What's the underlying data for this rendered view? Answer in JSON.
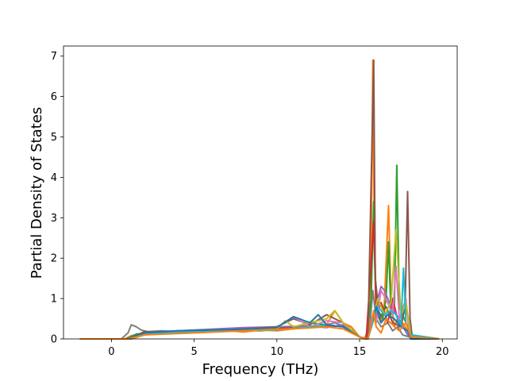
{
  "chart_data": {
    "type": "line",
    "title": "",
    "xlabel": "Frequency (THz)",
    "ylabel": "Partial Density of States",
    "xlim": [
      -2.9,
      20.9
    ],
    "ylim": [
      0,
      7.25
    ],
    "xticks": [
      0,
      5,
      10,
      15,
      20
    ],
    "yticks": [
      0,
      1,
      2,
      3,
      4,
      5,
      6,
      7
    ],
    "x_tick_labels": [
      "0",
      "5",
      "10",
      "15",
      "20"
    ],
    "y_tick_labels": [
      "0",
      "1",
      "2",
      "3",
      "4",
      "5",
      "6",
      "7"
    ],
    "grid": false,
    "legend": "none",
    "colors": [
      "#1f77b4",
      "#ff7f0e",
      "#2ca02c",
      "#d62728",
      "#9467bd",
      "#8c564b",
      "#e377c2",
      "#7f7f7f",
      "#bcbd22",
      "#17becf"
    ],
    "series": [
      {
        "color": "#7f7f7f",
        "x": [
          -1.9,
          0.6,
          1.0,
          1.2,
          1.5,
          1.8,
          2.2,
          3,
          4,
          5,
          6,
          7,
          8,
          9,
          10,
          11,
          12,
          13,
          13.5,
          14,
          14.5,
          15,
          15.3,
          15.6,
          15.8,
          16.0,
          16.3,
          16.7,
          17.0,
          17.3,
          17.6,
          18.0,
          18.3,
          19.8
        ],
        "y": [
          0,
          0,
          0.15,
          0.35,
          0.3,
          0.22,
          0.18,
          0.2,
          0.18,
          0.2,
          0.22,
          0.24,
          0.2,
          0.25,
          0.22,
          0.3,
          0.28,
          0.35,
          0.4,
          0.32,
          0.3,
          0.05,
          0,
          0.2,
          1.2,
          0.5,
          0.3,
          0.4,
          0.2,
          0.3,
          0.1,
          0.05,
          0,
          0
        ]
      },
      {
        "color": "#ff7f0e",
        "x": [
          -1.9,
          0.8,
          1.2,
          2,
          3,
          4,
          5,
          6,
          7,
          8,
          9,
          10,
          11,
          12,
          13,
          13.5,
          14,
          14.5,
          15,
          15.3,
          15.55,
          15.7,
          15.8,
          15.9,
          16.05,
          16.3,
          16.5,
          16.75,
          16.9,
          17.1,
          17.3,
          17.6,
          17.9,
          18.2,
          19.8
        ],
        "y": [
          0,
          0,
          0.08,
          0.12,
          0.15,
          0.14,
          0.16,
          0.18,
          0.2,
          0.17,
          0.22,
          0.2,
          0.25,
          0.3,
          0.35,
          0.7,
          0.4,
          0.3,
          0.05,
          0,
          0.3,
          2.0,
          6.9,
          2.0,
          0.6,
          0.4,
          0.9,
          3.3,
          1.0,
          0.3,
          0.5,
          0.4,
          0.2,
          0,
          0
        ]
      },
      {
        "color": "#2ca02c",
        "x": [
          -1.9,
          0.9,
          1.5,
          3,
          5,
          7,
          9,
          11,
          12,
          13,
          14,
          15,
          15.4,
          15.7,
          15.85,
          16.0,
          16.4,
          16.6,
          16.75,
          16.9,
          17.1,
          17.25,
          17.4,
          17.7,
          18.1,
          19.8
        ],
        "y": [
          0,
          0,
          0.12,
          0.18,
          0.2,
          0.22,
          0.2,
          0.28,
          0.4,
          0.35,
          0.3,
          0.05,
          0,
          1.0,
          3.4,
          0.8,
          0.5,
          1.0,
          2.4,
          0.6,
          0.7,
          4.3,
          0.8,
          0.5,
          0.1,
          0
        ]
      },
      {
        "color": "#d62728",
        "x": [
          -1.9,
          1.0,
          2,
          4,
          6,
          8,
          10,
          12,
          14,
          15,
          15.4,
          15.7,
          15.85,
          16.0,
          16.3,
          16.7,
          17.0,
          17.4,
          17.8,
          18.1,
          19.8
        ],
        "y": [
          0,
          0,
          0.15,
          0.2,
          0.22,
          0.25,
          0.28,
          0.3,
          0.32,
          0.05,
          0,
          1.9,
          2.9,
          0.6,
          0.9,
          0.4,
          1.0,
          0.3,
          0.8,
          0.1,
          0
        ]
      },
      {
        "color": "#9467bd",
        "x": [
          -1.9,
          1.0,
          2,
          4,
          6,
          8,
          10,
          12,
          13,
          14,
          15,
          15.5,
          15.8,
          16.1,
          16.3,
          16.5,
          16.8,
          17.1,
          17.5,
          17.9,
          19.8
        ],
        "y": [
          0,
          0,
          0.1,
          0.2,
          0.24,
          0.28,
          0.3,
          0.32,
          0.28,
          0.35,
          0.05,
          0,
          0.5,
          1.0,
          1.3,
          1.2,
          0.9,
          0.7,
          0.4,
          0.1,
          0
        ]
      },
      {
        "color": "#8c564b",
        "x": [
          -1.9,
          1.0,
          2,
          4,
          6,
          8,
          10,
          11,
          12,
          13,
          14,
          15,
          15.5,
          15.85,
          15.95,
          16.2,
          16.6,
          17.0,
          17.5,
          17.75,
          17.9,
          18.05,
          18.2,
          19.8
        ],
        "y": [
          0,
          0,
          0.18,
          0.15,
          0.2,
          0.25,
          0.3,
          0.5,
          0.35,
          0.6,
          0.4,
          0.05,
          0,
          6.9,
          1.5,
          0.5,
          0.8,
          0.4,
          0.3,
          0.8,
          3.65,
          0.5,
          0,
          0
        ]
      },
      {
        "color": "#e377c2",
        "x": [
          -1.9,
          1.1,
          2,
          4,
          6,
          8,
          10,
          11,
          12,
          13,
          14,
          15,
          15.5,
          15.8,
          16.0,
          16.3,
          16.7,
          17.0,
          17.2,
          17.4,
          17.8,
          18.0,
          19.8
        ],
        "y": [
          0,
          0,
          0.14,
          0.18,
          0.22,
          0.24,
          0.28,
          0.55,
          0.3,
          0.45,
          0.4,
          0.05,
          0,
          0.6,
          0.4,
          1.2,
          0.9,
          0.6,
          1.8,
          0.5,
          1.0,
          0.1,
          0
        ]
      },
      {
        "color": "#bcbd22",
        "x": [
          -1.9,
          1.2,
          2,
          4,
          6,
          8,
          10,
          10.5,
          11,
          12,
          13,
          13.5,
          14,
          15,
          15.5,
          15.8,
          16.1,
          16.5,
          16.9,
          17.2,
          17.5,
          17.8,
          18.1,
          19.8
        ],
        "y": [
          0,
          0,
          0.1,
          0.15,
          0.2,
          0.22,
          0.25,
          0.45,
          0.3,
          0.4,
          0.5,
          0.7,
          0.4,
          0.05,
          0,
          0.5,
          1.0,
          0.6,
          0.9,
          2.7,
          0.6,
          0.9,
          0.1,
          0
        ]
      },
      {
        "color": "#17becf",
        "x": [
          -1.9,
          1.2,
          2,
          4,
          6,
          8,
          10,
          12,
          13,
          14,
          15,
          15.5,
          15.8,
          16.1,
          16.5,
          16.9,
          17.2,
          17.5,
          17.65,
          17.8,
          18.1,
          19.8
        ],
        "y": [
          0,
          0,
          0.12,
          0.16,
          0.18,
          0.2,
          0.22,
          0.3,
          0.35,
          0.3,
          0.05,
          0,
          0.4,
          0.8,
          0.6,
          0.7,
          0.6,
          0.3,
          1.75,
          0.4,
          0.1,
          0
        ]
      },
      {
        "color": "#1f77b4",
        "x": [
          -1.9,
          0.9,
          2,
          4,
          6,
          8,
          10,
          11,
          12,
          12.5,
          13,
          14,
          15,
          15.5,
          15.8,
          16.0,
          16.3,
          16.7,
          17.1,
          17.5,
          17.9,
          18.1,
          19.8
        ],
        "y": [
          0,
          0,
          0.15,
          0.2,
          0.22,
          0.24,
          0.28,
          0.55,
          0.4,
          0.6,
          0.35,
          0.3,
          0.05,
          0,
          0.5,
          0.8,
          0.4,
          0.6,
          0.5,
          0.3,
          0.2,
          0,
          0
        ]
      },
      {
        "color": "#ff7f0e",
        "x": [
          -1.9,
          1.0,
          2,
          5,
          8,
          11,
          13,
          14,
          15,
          15.5,
          15.7,
          15.85,
          16.0,
          16.3,
          16.6,
          17.0,
          17.4,
          17.8,
          18.1,
          19.8
        ],
        "y": [
          0,
          0,
          0.1,
          0.15,
          0.2,
          0.25,
          0.3,
          0.25,
          0.05,
          0,
          0.3,
          0.7,
          0.3,
          0.15,
          0.5,
          0.35,
          0.2,
          0.4,
          0.05,
          0
        ]
      }
    ]
  }
}
